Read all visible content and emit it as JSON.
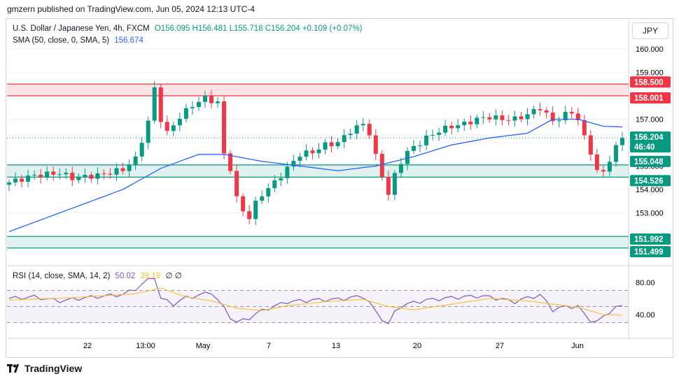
{
  "header": {
    "published": "gmzern published on TradingView.com, Jun 05, 2024 12:13 UTC-4"
  },
  "legend": {
    "symbol": "U.S. Dollar / Japanese Yen, 4h, FXCM",
    "ohlc": "O156.095 H156.481 L155.718 C156.204 +0.109 (+0.07%)",
    "sma_label": "SMA (50, close, 0, SMA, 5)",
    "sma_value": "156.674",
    "rsi_label": "RSI (14, close, SMA, 14, 2)",
    "rsi_value": "50.02",
    "rsi_sma_value": "39.19",
    "rsi_tail": "∅ ∅"
  },
  "currency_button": "JPY",
  "footer": {
    "brand": "TradingView",
    "logo_icon": "tradingview-logo-icon"
  },
  "colors": {
    "up": "#089981",
    "down": "#f23645",
    "sma": "#2962ff",
    "rsi": "#7e57c2",
    "rsi_sma": "#f7c02c",
    "resistance_zone": "#f23645",
    "support_zone": "#089981"
  },
  "chart_data": [
    {
      "type": "candlestick",
      "title": "U.S. Dollar / Japanese Yen, 4h, FXCM",
      "ylim": [
        152.0,
        160.6
      ],
      "y_ticks": [
        "160.000",
        "159.000",
        "158.000",
        "157.000",
        "156.000",
        "155.000",
        "154.000",
        "153.000"
      ],
      "x_ticks": [
        "22",
        "13:00",
        "May",
        "7",
        "13",
        "20",
        "27",
        "Jun"
      ],
      "grid": true,
      "price_labels": [
        {
          "text": "158.500",
          "kind": "resistance"
        },
        {
          "text": "158.001",
          "kind": "resistance"
        },
        {
          "text": "156.204",
          "kind": "last"
        },
        {
          "text": "46:40",
          "kind": "countdown"
        },
        {
          "text": "155.048",
          "kind": "support"
        },
        {
          "text": "154.526",
          "kind": "support"
        },
        {
          "text": "151.992",
          "kind": "support"
        },
        {
          "text": "151.499",
          "kind": "support"
        }
      ],
      "zones": [
        {
          "name": "resistance",
          "low": 158.001,
          "high": 158.5
        },
        {
          "name": "support",
          "low": 154.526,
          "high": 155.048
        },
        {
          "name": "support",
          "low": 151.499,
          "high": 151.992
        }
      ],
      "last_price": 156.204,
      "close_path": [
        [
          0,
          154.3
        ],
        [
          4,
          154.6
        ],
        [
          8,
          154.7
        ],
        [
          10,
          154.5
        ],
        [
          14,
          154.6
        ],
        [
          18,
          154.85
        ],
        [
          20,
          155.3
        ],
        [
          22,
          156.9
        ],
        [
          23,
          158.3
        ],
        [
          24,
          157.0
        ],
        [
          25,
          156.4
        ],
        [
          27,
          157.1
        ],
        [
          29,
          157.6
        ],
        [
          31,
          157.9
        ],
        [
          33,
          157.7
        ],
        [
          34,
          155.5
        ],
        [
          35,
          154.9
        ],
        [
          36,
          153.6
        ],
        [
          37,
          153.1
        ],
        [
          38,
          152.8
        ],
        [
          39,
          153.4
        ],
        [
          40,
          153.8
        ],
        [
          42,
          154.3
        ],
        [
          44,
          154.9
        ],
        [
          46,
          155.5
        ],
        [
          48,
          155.6
        ],
        [
          50,
          155.9
        ],
        [
          52,
          156.0
        ],
        [
          54,
          156.5
        ],
        [
          56,
          156.8
        ],
        [
          57,
          156.4
        ],
        [
          58,
          155.4
        ],
        [
          59,
          154.6
        ],
        [
          60,
          153.8
        ],
        [
          61,
          154.6
        ],
        [
          62,
          155.2
        ],
        [
          63,
          155.6
        ],
        [
          64,
          155.8
        ],
        [
          66,
          156.2
        ],
        [
          68,
          156.5
        ],
        [
          70,
          156.7
        ],
        [
          72,
          156.8
        ],
        [
          74,
          157.0
        ],
        [
          76,
          157.1
        ],
        [
          78,
          157.0
        ],
        [
          80,
          157.0
        ],
        [
          82,
          157.2
        ],
        [
          84,
          157.5
        ],
        [
          85,
          157.2
        ],
        [
          86,
          156.9
        ],
        [
          88,
          157.2
        ],
        [
          89,
          157.3
        ],
        [
          90,
          157.0
        ],
        [
          91,
          156.2
        ],
        [
          92,
          155.6
        ],
        [
          93,
          154.8
        ],
        [
          94,
          154.7
        ],
        [
          95,
          155.3
        ],
        [
          96,
          155.8
        ],
        [
          97,
          156.2
        ]
      ],
      "sma_path": [
        [
          0,
          152.2
        ],
        [
          10,
          153.2
        ],
        [
          18,
          154.0
        ],
        [
          24,
          154.9
        ],
        [
          30,
          155.5
        ],
        [
          34,
          155.5
        ],
        [
          40,
          155.2
        ],
        [
          46,
          155.0
        ],
        [
          52,
          154.8
        ],
        [
          58,
          155.0
        ],
        [
          64,
          155.4
        ],
        [
          70,
          155.9
        ],
        [
          76,
          156.2
        ],
        [
          82,
          156.4
        ],
        [
          86,
          157.0
        ],
        [
          90,
          157.0
        ],
        [
          94,
          156.7
        ],
        [
          97,
          156.67
        ]
      ]
    },
    {
      "type": "line",
      "title": "RSI (14, close, SMA, 14, 2)",
      "ylim": [
        20,
        100
      ],
      "y_ticks": [
        "80.00",
        "40.00"
      ],
      "bands": [
        70,
        50,
        30
      ],
      "series": [
        {
          "name": "RSI",
          "path": [
            [
              0,
              60
            ],
            [
              4,
              62
            ],
            [
              8,
              57
            ],
            [
              12,
              61
            ],
            [
              18,
              65
            ],
            [
              20,
              72
            ],
            [
              22,
              83
            ],
            [
              23,
              87
            ],
            [
              24,
              60
            ],
            [
              26,
              53
            ],
            [
              28,
              61
            ],
            [
              30,
              64
            ],
            [
              32,
              68
            ],
            [
              34,
              48
            ],
            [
              35,
              37
            ],
            [
              36,
              30
            ],
            [
              38,
              36
            ],
            [
              40,
              45
            ],
            [
              44,
              56
            ],
            [
              48,
              58
            ],
            [
              52,
              59
            ],
            [
              56,
              63
            ],
            [
              57,
              55
            ],
            [
              58,
              43
            ],
            [
              59,
              35
            ],
            [
              60,
              28
            ],
            [
              61,
              43
            ],
            [
              62,
              51
            ],
            [
              64,
              55
            ],
            [
              66,
              58
            ],
            [
              70,
              61
            ],
            [
              74,
              63
            ],
            [
              76,
              62
            ],
            [
              80,
              56
            ],
            [
              82,
              61
            ],
            [
              84,
              64
            ],
            [
              85,
              56
            ],
            [
              86,
              46
            ],
            [
              88,
              50
            ],
            [
              90,
              50
            ],
            [
              91,
              40
            ],
            [
              92,
              33
            ],
            [
              93,
              31
            ],
            [
              94,
              37
            ],
            [
              95,
              44
            ],
            [
              96,
              49
            ],
            [
              97,
              50
            ]
          ]
        },
        {
          "name": "RSI-based MA",
          "path": [
            [
              0,
              58
            ],
            [
              10,
              61
            ],
            [
              20,
              66
            ],
            [
              24,
              73
            ],
            [
              28,
              62
            ],
            [
              32,
              57
            ],
            [
              36,
              48
            ],
            [
              40,
              45
            ],
            [
              44,
              51
            ],
            [
              50,
              56
            ],
            [
              56,
              59
            ],
            [
              60,
              50
            ],
            [
              64,
              46
            ],
            [
              70,
              53
            ],
            [
              76,
              60
            ],
            [
              82,
              57
            ],
            [
              86,
              53
            ],
            [
              90,
              49
            ],
            [
              94,
              40
            ],
            [
              97,
              39.19
            ]
          ]
        }
      ]
    }
  ]
}
